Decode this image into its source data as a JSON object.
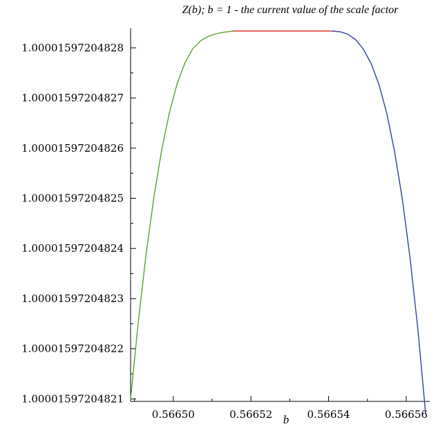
{
  "chart_data": {
    "type": "line",
    "title": "Z(b); b = 1 - the current value of the scale factor",
    "xlabel": "b",
    "ylabel": "",
    "xlim": [
      0.566489,
      0.566565
    ],
    "ylim": [
      1.0000159720482096,
      1.0000159720482833
    ],
    "x_ticks": [
      "0.56650",
      "0.56652",
      "0.56654",
      "0.56656"
    ],
    "x_tick_values": [
      0.5665,
      0.56652,
      0.56654,
      0.56656
    ],
    "y_ticks": [
      "1.00001597204821",
      "1.00001597204822",
      "1.00001597204823",
      "1.00001597204824",
      "1.00001597204825",
      "1.00001597204826",
      "1.00001597204827",
      "1.00001597204828"
    ],
    "y_tick_offsets": [
      1,
      2,
      3,
      4,
      5,
      6,
      7,
      8
    ],
    "y_offset_base": 1.0000159720482,
    "y_offset_unit": 1e-14,
    "grid": false,
    "series": [
      {
        "color": "#5aa02c",
        "x": [
          0.566489,
          0.566491,
          0.566493,
          0.566495,
          0.566497,
          0.566499,
          0.566501,
          0.566503,
          0.566505,
          0.566507,
          0.566509,
          0.566511,
          0.566513,
          0.566515,
          0.5665155
        ],
        "y_offsets": [
          1.0,
          2.55,
          3.89,
          5.02,
          5.96,
          6.71,
          7.29,
          7.7,
          7.98,
          8.14,
          8.23,
          8.28,
          8.31,
          8.33,
          8.335
        ]
      },
      {
        "color": "#e0302a",
        "x": [
          0.5665155,
          0.566541
        ],
        "y_offsets": [
          8.335,
          8.335
        ]
      },
      {
        "color": "#2a3f9e",
        "x": [
          0.566541,
          0.566543,
          0.566545,
          0.566547,
          0.566549,
          0.566551,
          0.566553,
          0.566555,
          0.566557,
          0.566559,
          0.566561,
          0.566563,
          0.566565
        ],
        "y_offsets": [
          8.335,
          8.32,
          8.27,
          8.16,
          7.97,
          7.68,
          7.26,
          6.69,
          5.93,
          4.98,
          3.8,
          2.39,
          0.7
        ]
      }
    ]
  }
}
